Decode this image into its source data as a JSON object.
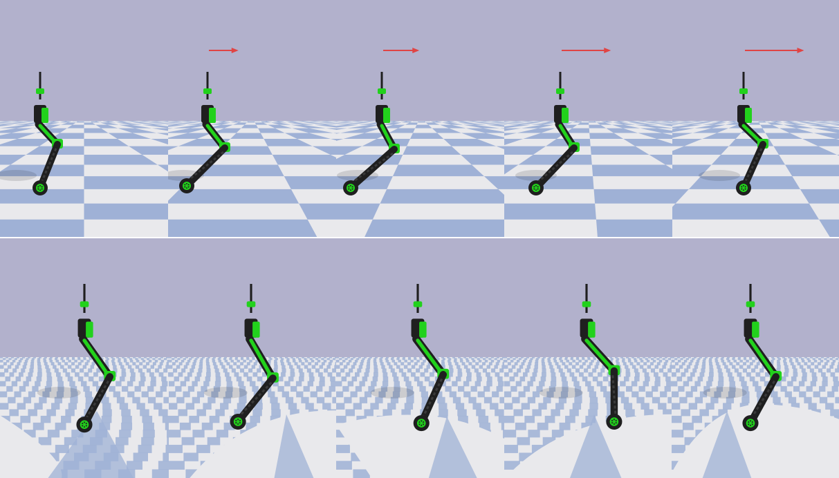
{
  "colors": {
    "sky": "#b2b1cc",
    "floor_blue": "#9fb1d6",
    "floor_white": "#e9e9ec",
    "robot_green": "#22d11c",
    "robot_dark": "#1f1f1f",
    "arrow": "#e04444"
  },
  "rows": [
    {
      "id": "top",
      "frames": [
        {
          "arrow": false,
          "arrow_length": 0
        },
        {
          "arrow": true,
          "arrow_length": 0.45
        },
        {
          "arrow": true,
          "arrow_length": 0.55
        },
        {
          "arrow": true,
          "arrow_length": 0.75
        },
        {
          "arrow": true,
          "arrow_length": 0.9
        }
      ]
    },
    {
      "id": "bottom",
      "frames": [
        {
          "arrow": false,
          "arrow_length": 0
        },
        {
          "arrow": false,
          "arrow_length": 0
        },
        {
          "arrow": false,
          "arrow_length": 0
        },
        {
          "arrow": false,
          "arrow_length": 0
        },
        {
          "arrow": false,
          "arrow_length": 0
        }
      ]
    }
  ]
}
